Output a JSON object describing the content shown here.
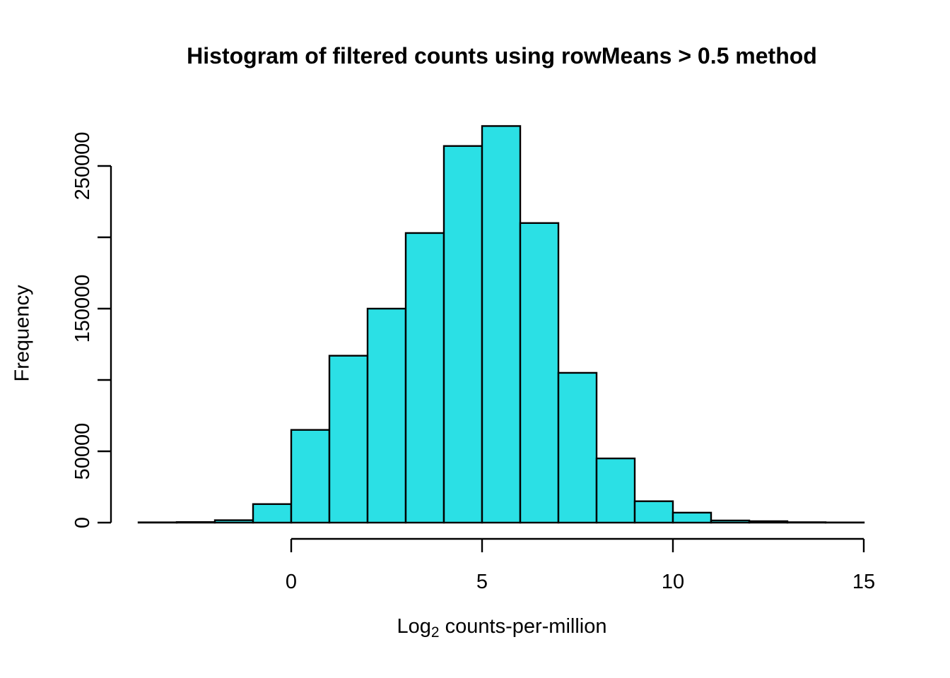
{
  "chart_data": {
    "type": "bar",
    "subtype": "histogram",
    "title": "Histogram of filtered counts using rowMeans > 0.5 method",
    "xlabel": "Log2 counts-per-million",
    "xlabel_parts": {
      "prefix": "Log",
      "subscript": "2",
      "suffix": "counts-per-million"
    },
    "ylabel": "Frequency",
    "bin_start": -4,
    "bin_width": 1,
    "bin_edges": [
      -4,
      -3,
      -2,
      -1,
      0,
      1,
      2,
      3,
      4,
      5,
      6,
      7,
      8,
      9,
      10,
      11,
      12,
      13,
      14,
      15
    ],
    "counts": [
      200,
      400,
      1700,
      13000,
      65000,
      117000,
      150000,
      203000,
      264000,
      278000,
      210000,
      105000,
      45000,
      15000,
      7000,
      1500,
      1000,
      300,
      150
    ],
    "x_ticks": [
      0,
      5,
      10,
      15
    ],
    "x_tick_labels": [
      "0",
      "5",
      "10",
      "15"
    ],
    "y_ticks": [
      0,
      50000,
      100000,
      150000,
      200000,
      250000
    ],
    "y_tick_labels": [
      "0",
      "50000",
      "",
      "150000",
      "",
      "250000"
    ],
    "xlim": [
      -4.76,
      15.76
    ],
    "ylim": [
      0,
      280000
    ],
    "grid": false,
    "legend": null,
    "bar_fill": "#2BE0E5",
    "bar_border": "#000000",
    "axis_color": "#000000",
    "text_color": "#000000",
    "background": "#FFFFFF"
  }
}
